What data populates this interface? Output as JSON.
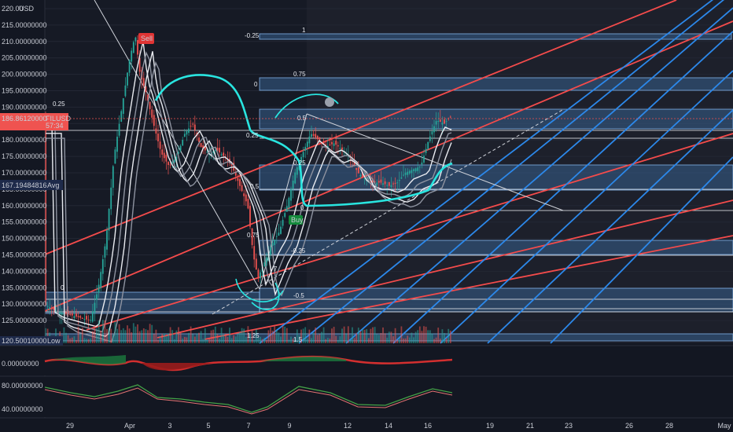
{
  "chart_data": {
    "type": "candlestick",
    "symbol": "FILUSD",
    "currency": "USD",
    "price_axis_labels": [
      "220.00000000",
      "215.00000000",
      "210.00000000",
      "205.00000000",
      "200.00000000",
      "195.00000000",
      "190.00000000",
      "185.00000000",
      "180.00000000",
      "175.00000000",
      "170.00000000",
      "165.00000000",
      "160.00000000",
      "155.00000000",
      "150.00000000",
      "145.00000000",
      "140.00000000",
      "135.00000000",
      "130.00000000",
      "125.00000000"
    ],
    "time_axis_labels": [
      "29",
      "Apr",
      "3",
      "5",
      "7",
      "9",
      "12",
      "14",
      "16",
      "19",
      "21",
      "23",
      "26",
      "28",
      "May"
    ],
    "current_price": {
      "value": "186.86120000",
      "symbol": "FILUSD",
      "countdown": "57:34",
      "color": "#ef5350"
    },
    "avg_price": {
      "value": "167.19484816",
      "label": "Avg",
      "color": "#2962ff"
    },
    "low_price": {
      "value": "120.50010000",
      "label": "Low",
      "color": "#2962ff"
    },
    "sell_label": "Sell",
    "buy_label": "Buy",
    "fib_upper_labels": [
      "1",
      "0.75",
      "0.5",
      "0.25",
      "0",
      "-0.25",
      "-0.5"
    ],
    "fib_upper_left_labels": [
      "-0.25",
      "0"
    ],
    "fib_lower_labels": [
      "0.25",
      "0.5",
      "0.75",
      "1",
      "1.25"
    ],
    "fib_left_labels": [
      "0.25",
      "0"
    ],
    "fib_bottom_labels": [
      "1.25",
      "1.5"
    ],
    "annotation_digit": "7",
    "osc1_axis_labels": [
      "0.00000000"
    ],
    "osc2_axis_labels": [
      "80.00000000",
      "40.00000000"
    ],
    "colors": {
      "background": "#131722",
      "up": "#26a69a",
      "down": "#ef5350",
      "red_channel": "#f44b4b",
      "blue_channel": "#2c88ea",
      "cyan_curve": "#29e5e0",
      "fib_zone": "#3f6fa3"
    }
  }
}
